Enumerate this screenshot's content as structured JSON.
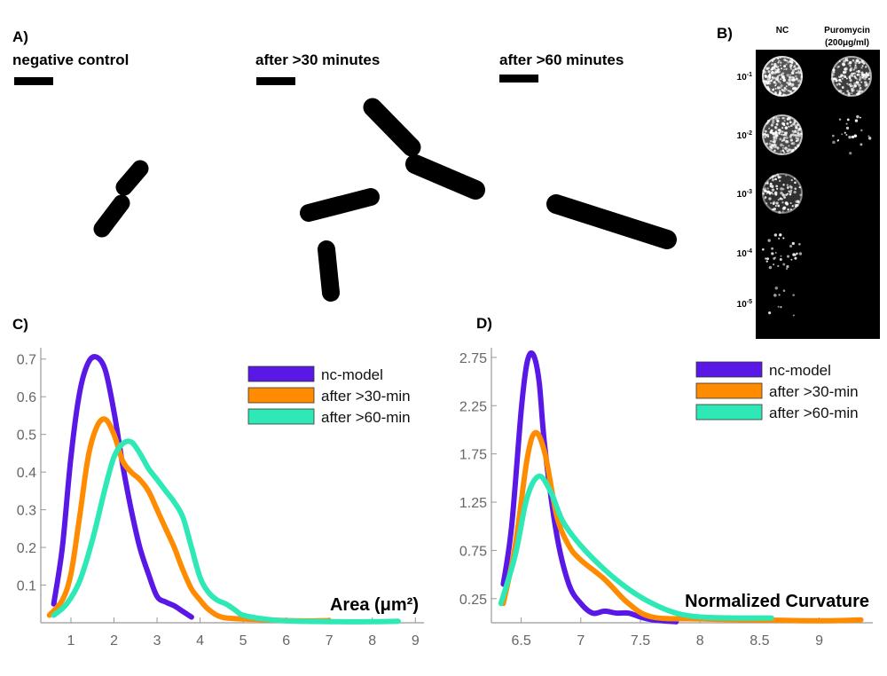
{
  "panel_a": {
    "label": "A)",
    "captions": [
      "negative control",
      "after >30 minutes",
      "after >60 minutes"
    ]
  },
  "panel_b": {
    "label": "B)",
    "col_nc": "NC",
    "col_puro": "Puromycin",
    "col_puro_sub": "(200μg/ml)",
    "rows": [
      {
        "base": "10",
        "exp": "-1",
        "nc_density": 1.0,
        "puro_density": 0.75
      },
      {
        "base": "10",
        "exp": "-2",
        "nc_density": 0.85,
        "puro_density": 0.12
      },
      {
        "base": "10",
        "exp": "-3",
        "nc_density": 0.55,
        "puro_density": 0.0
      },
      {
        "base": "10",
        "exp": "-4",
        "nc_density": 0.18,
        "puro_density": 0.0
      },
      {
        "base": "10",
        "exp": "-5",
        "nc_density": 0.05,
        "puro_density": 0.0
      }
    ]
  },
  "chart_data": [
    {
      "panel": "C)",
      "type": "line",
      "xlabel": "Area (μm²)",
      "ylabel": "",
      "x_ticks": [
        1,
        2,
        3,
        4,
        5,
        6,
        7,
        8,
        9
      ],
      "y_ticks": [
        0.1,
        0.2,
        0.3,
        0.4,
        0.5,
        0.6,
        0.7
      ],
      "xlim": [
        0.3,
        9.2
      ],
      "ylim": [
        0.0,
        0.73
      ],
      "legend_position": "top-right",
      "series": [
        {
          "name": "nc-model",
          "color": "#5a18e6",
          "x": [
            0.6,
            0.8,
            1.0,
            1.2,
            1.4,
            1.6,
            1.8,
            2.0,
            2.2,
            2.4,
            2.6,
            2.8,
            3.0,
            3.2,
            3.4,
            3.6,
            3.8
          ],
          "y": [
            0.05,
            0.2,
            0.44,
            0.61,
            0.69,
            0.705,
            0.67,
            0.56,
            0.42,
            0.3,
            0.2,
            0.13,
            0.07,
            0.055,
            0.045,
            0.03,
            0.015
          ]
        },
        {
          "name": "after >30-min",
          "color": "#ff8c00",
          "x": [
            0.5,
            0.8,
            1.0,
            1.2,
            1.4,
            1.6,
            1.8,
            2.0,
            2.2,
            2.4,
            2.6,
            2.8,
            3.0,
            3.2,
            3.4,
            3.6,
            3.8,
            4.0,
            4.2,
            4.5,
            5.0,
            5.5,
            6.0,
            6.5,
            7.0
          ],
          "y": [
            0.02,
            0.06,
            0.13,
            0.28,
            0.44,
            0.52,
            0.54,
            0.5,
            0.43,
            0.4,
            0.38,
            0.35,
            0.3,
            0.25,
            0.2,
            0.14,
            0.09,
            0.06,
            0.035,
            0.015,
            0.01,
            0.008,
            0.006,
            0.005,
            0.006
          ]
        },
        {
          "name": "after >60-min",
          "color": "#2ee8b6",
          "x": [
            0.6,
            0.9,
            1.2,
            1.5,
            1.8,
            2.0,
            2.2,
            2.4,
            2.6,
            2.8,
            3.0,
            3.2,
            3.4,
            3.6,
            3.8,
            4.0,
            4.2,
            4.4,
            4.6,
            4.8,
            5.0,
            5.5,
            6.0,
            7.0,
            8.0,
            8.6
          ],
          "y": [
            0.02,
            0.05,
            0.11,
            0.22,
            0.36,
            0.44,
            0.475,
            0.48,
            0.45,
            0.41,
            0.38,
            0.35,
            0.32,
            0.28,
            0.2,
            0.12,
            0.08,
            0.06,
            0.05,
            0.035,
            0.02,
            0.01,
            0.005,
            0.003,
            0.003,
            0.004
          ]
        }
      ]
    },
    {
      "panel": "D)",
      "type": "line",
      "xlabel": "Normalized Curvature",
      "ylabel": "",
      "x_ticks": [
        6.5,
        7,
        7.5,
        8,
        8.5,
        9
      ],
      "x_tick_labels": [
        "6.5",
        "7",
        "7.5",
        "8",
        "8.5",
        "9"
      ],
      "y_ticks": [
        0.25,
        0.75,
        1.25,
        1.75,
        2.25,
        2.75
      ],
      "xlim": [
        6.25,
        9.45
      ],
      "ylim": [
        0.0,
        2.85
      ],
      "legend_position": "top-right",
      "series": [
        {
          "name": "nc-model",
          "color": "#5a18e6",
          "x": [
            6.35,
            6.42,
            6.5,
            6.55,
            6.6,
            6.65,
            6.7,
            6.8,
            6.9,
            7.0,
            7.1,
            7.2,
            7.3,
            7.4,
            7.5,
            7.6,
            7.8
          ],
          "y": [
            0.4,
            1.0,
            2.2,
            2.7,
            2.78,
            2.5,
            1.8,
            0.9,
            0.4,
            0.2,
            0.1,
            0.12,
            0.1,
            0.1,
            0.06,
            0.03,
            0.01
          ]
        },
        {
          "name": "after >30-min",
          "color": "#ff8c00",
          "x": [
            6.35,
            6.45,
            6.55,
            6.62,
            6.7,
            6.8,
            6.9,
            7.0,
            7.2,
            7.4,
            7.6,
            8.0,
            8.5,
            9.0,
            9.35
          ],
          "y": [
            0.2,
            0.8,
            1.7,
            1.97,
            1.75,
            1.1,
            0.8,
            0.65,
            0.45,
            0.2,
            0.06,
            0.04,
            0.03,
            0.02,
            0.03
          ]
        },
        {
          "name": "after >60-min",
          "color": "#2ee8b6",
          "x": [
            6.33,
            6.45,
            6.55,
            6.65,
            6.75,
            6.85,
            7.0,
            7.2,
            7.4,
            7.6,
            7.8,
            8.0,
            8.3,
            8.6
          ],
          "y": [
            0.2,
            0.7,
            1.3,
            1.52,
            1.35,
            1.05,
            0.8,
            0.55,
            0.35,
            0.2,
            0.1,
            0.06,
            0.05,
            0.05
          ]
        }
      ]
    }
  ]
}
